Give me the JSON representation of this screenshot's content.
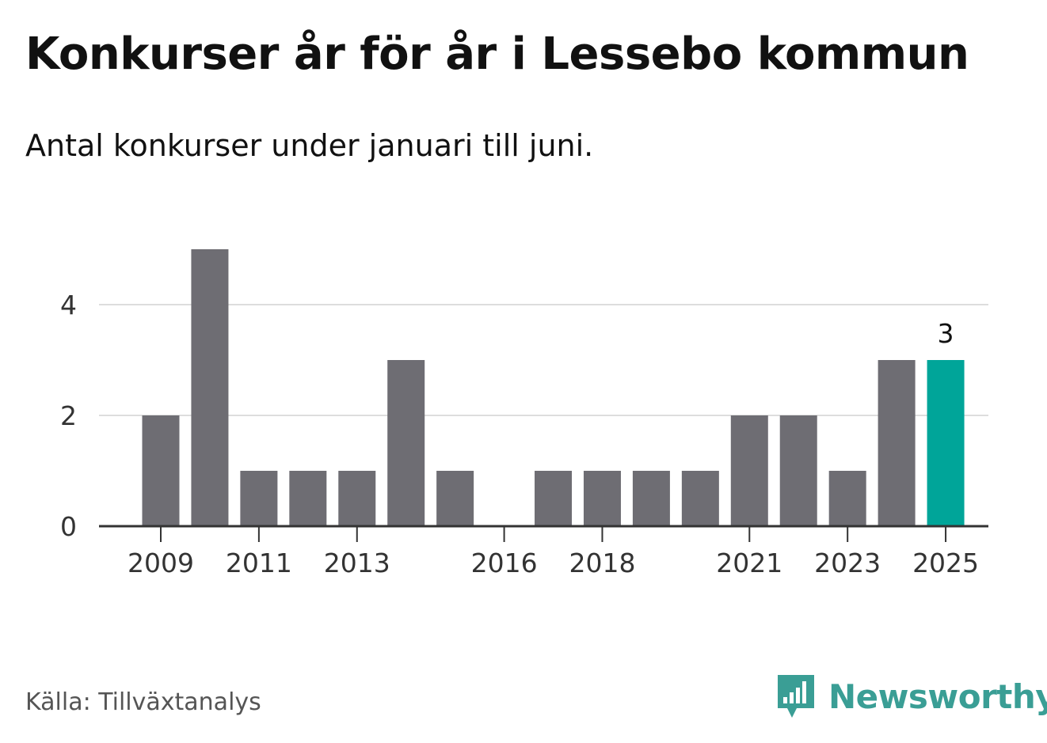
{
  "header": {
    "title": "Konkurser år för år i Lessebo kommun",
    "subtitle": "Antal konkurser under januari till juni."
  },
  "footer": {
    "source": "Källa: Tillväxtanalys",
    "brand": "Newsworthy",
    "brand_icon": "bar-chart-speech-bubble-icon"
  },
  "colors": {
    "bar": "#6e6d73",
    "highlight": "#00a599",
    "grid": "#dddddd",
    "axis": "#333333",
    "brand": "#3a9e95"
  },
  "chart_data": {
    "type": "bar",
    "categories": [
      "2009",
      "2010",
      "2011",
      "2012",
      "2013",
      "2014",
      "2015",
      "2016",
      "2017",
      "2018",
      "2019",
      "2020",
      "2021",
      "2022",
      "2023",
      "2024",
      "2025"
    ],
    "values": [
      2,
      5,
      1,
      1,
      1,
      3,
      1,
      0,
      1,
      1,
      1,
      1,
      2,
      2,
      1,
      3,
      3
    ],
    "highlight_category": "2025",
    "data_labels": [
      {
        "category": "2025",
        "text": "3"
      }
    ],
    "x_tick_labels": [
      "2009",
      "2011",
      "2013",
      "2016",
      "2018",
      "2021",
      "2023",
      "2025"
    ],
    "y_ticks": [
      0,
      2,
      4
    ],
    "ylim": [
      0,
      5
    ],
    "grid": true,
    "title": "Konkurser år för år i Lessebo kommun",
    "subtitle": "Antal konkurser under januari till juni."
  }
}
